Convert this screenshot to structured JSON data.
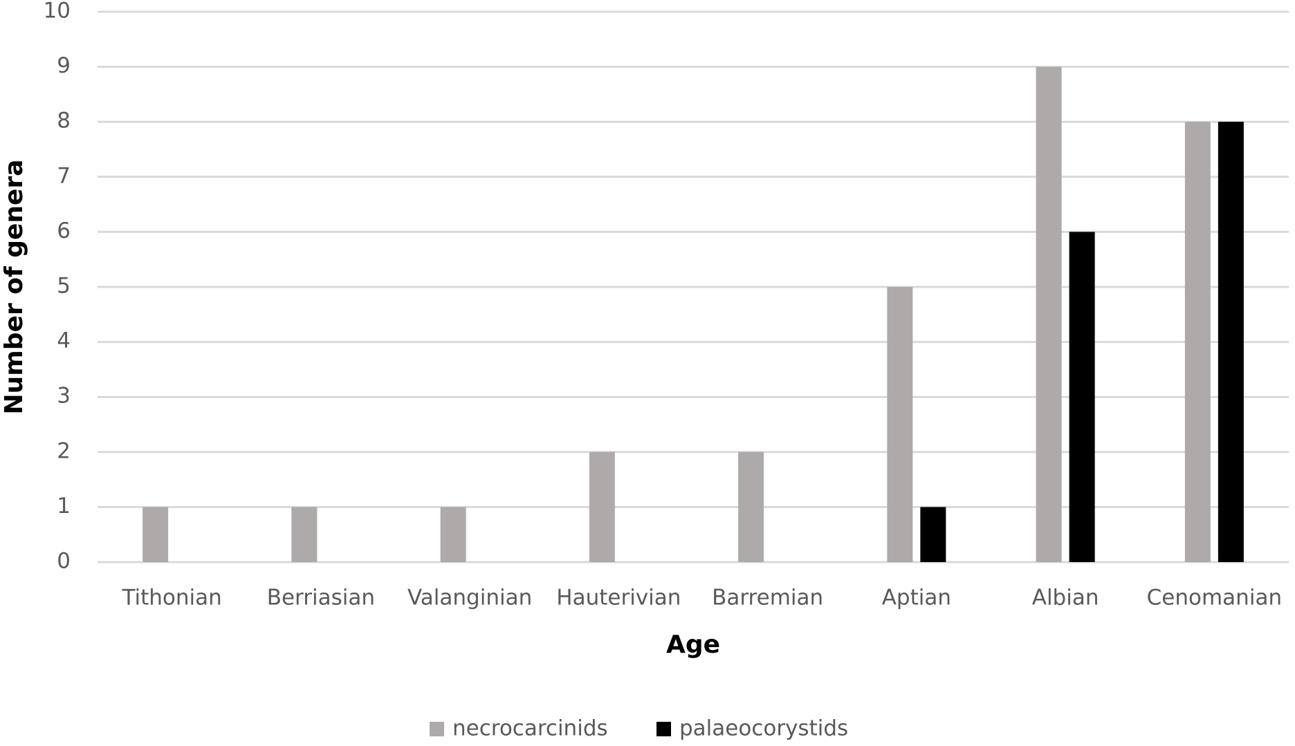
{
  "chart_data": {
    "type": "bar",
    "x_label": "Age",
    "y_label": "Number of genera",
    "categories": [
      "Tithonian",
      "Berriasian",
      "Valanginian",
      "Hauterivian",
      "Barremian",
      "Aptian",
      "Albian",
      "Cenomanian"
    ],
    "series": [
      {
        "name": "necrocarcinids",
        "color": "#aeaaaa",
        "values": [
          1,
          1,
          1,
          2,
          2,
          5,
          9,
          8
        ]
      },
      {
        "name": "palaeocorystids",
        "color": "#000000",
        "values": [
          0,
          0,
          0,
          0,
          0,
          1,
          6,
          8
        ]
      }
    ],
    "ylim": [
      0,
      10
    ],
    "yticks": [
      0,
      1,
      2,
      3,
      4,
      5,
      6,
      7,
      8,
      9,
      10
    ],
    "grid": true,
    "legend": "bottom"
  }
}
